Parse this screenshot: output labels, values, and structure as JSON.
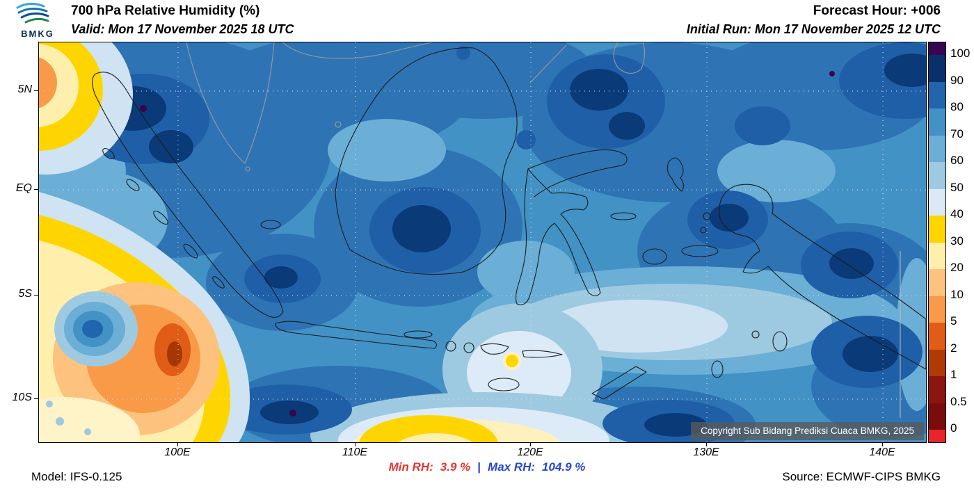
{
  "header": {
    "logo": "BMKG",
    "title": "700 hPa Relative Humidity (%)",
    "valid_line": "Valid: Mon 17 November 2025 18 UTC",
    "forecast_hour": "Forecast Hour: +006",
    "initial_run": "Initial Run: Mon 17 November 2025 12 UTC"
  },
  "map": {
    "lat_labels": [
      "5N",
      "EQ",
      "5S",
      "10S"
    ],
    "lon_labels": [
      "100E",
      "110E",
      "120E",
      "130E",
      "140E"
    ],
    "copyright": "Copyright Sub Bidang Prediksi Cuaca BMKG, 2025"
  },
  "colorbar": {
    "tick_labels": [
      "100",
      "90",
      "80",
      "70",
      "60",
      "50",
      "40",
      "30",
      "20",
      "10",
      "5",
      "2",
      "1",
      "0.5",
      "0"
    ],
    "colors": [
      "#38074e",
      "#08306b",
      "#2166ac",
      "#4292c6",
      "#6baed6",
      "#9ecae1",
      "#dbe9f6",
      "#ffd500",
      "#ffefad",
      "#fcc27e",
      "#f89a47",
      "#e05c17",
      "#b03a03",
      "#8c1510",
      "#7a0c0c",
      "#e8242c"
    ]
  },
  "footer": {
    "model": "Model: IFS-0.125",
    "min_rh_label": "Min RH:",
    "min_rh_value": "3.9 %",
    "separator": "|",
    "max_rh_label": "Max RH:",
    "max_rh_value": "104.9 %",
    "source": "Source: ECMWF-CIPS BMKG",
    "min_color": "#e8362e",
    "max_color": "#2746d6"
  }
}
